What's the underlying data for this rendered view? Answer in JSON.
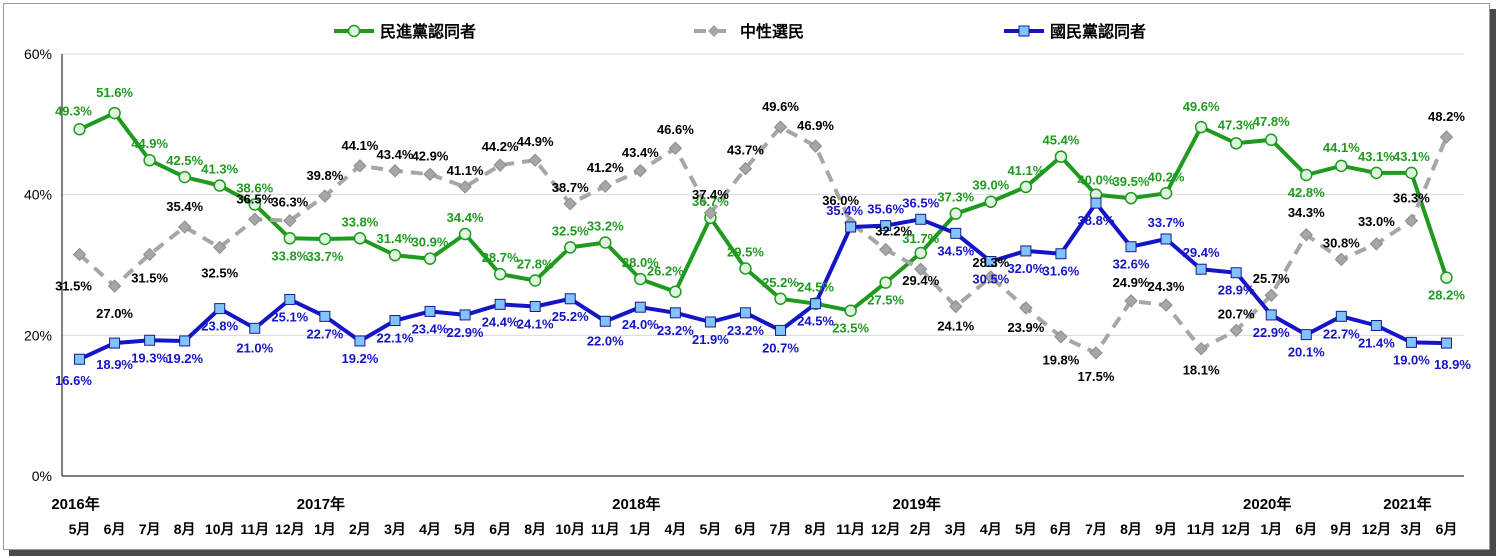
{
  "chart_data": {
    "type": "line",
    "ylim": [
      0,
      60
    ],
    "yticks": [
      "0%",
      "20%",
      "40%",
      "60%"
    ],
    "years": [
      {
        "label": "2016年",
        "index": 0
      },
      {
        "label": "2017年",
        "index": 7
      },
      {
        "label": "2018年",
        "index": 16
      },
      {
        "label": "2019年",
        "index": 24
      },
      {
        "label": "2020年",
        "index": 34
      },
      {
        "label": "2021年",
        "index": 38
      }
    ],
    "categories": [
      "5月",
      "6月",
      "7月",
      "8月",
      "10月",
      "11月",
      "12月",
      "1月",
      "2月",
      "3月",
      "4月",
      "5月",
      "6月",
      "8月",
      "10月",
      "11月",
      "1月",
      "4月",
      "5月",
      "6月",
      "7月",
      "8月",
      "11月",
      "12月",
      "2月",
      "3月",
      "4月",
      "5月",
      "6月",
      "7月",
      "8月",
      "9月",
      "11月",
      "12月",
      "1月",
      "6月",
      "9月",
      "12月",
      "3月",
      "6月"
    ],
    "series": [
      {
        "name": "民進黨認同者",
        "color": "#1f9a1f",
        "marker": "circle",
        "values": [
          49.3,
          51.6,
          44.9,
          42.5,
          41.3,
          38.6,
          33.8,
          33.7,
          33.8,
          31.4,
          30.9,
          34.4,
          28.7,
          27.8,
          32.5,
          33.2,
          28.0,
          26.2,
          36.7,
          29.5,
          25.2,
          24.5,
          23.5,
          27.5,
          31.7,
          37.3,
          39.0,
          41.1,
          45.4,
          40.0,
          39.5,
          40.2,
          49.6,
          47.3,
          47.8,
          42.8,
          44.1,
          43.1,
          43.1,
          28.2
        ],
        "labels": [
          "49.3%",
          "51.6%",
          "44.9%",
          "42.5%",
          "41.3%",
          "38.6%",
          "33.8%",
          "33.7%",
          "33.8%",
          "31.4%",
          "30.9%",
          "34.4%",
          "28.7%",
          "27.8%",
          "32.5%",
          "33.2%",
          "28.0%",
          "26.2%",
          "36.7%",
          "29.5%",
          "25.2%",
          "24.5%",
          "23.5%",
          "27.5%",
          "31.7%",
          "37.3%",
          "39.0%",
          "41.1%",
          "45.4%",
          "40.0%",
          "39.5%",
          "40.2%",
          "49.6%",
          "47.3%",
          "47.8%",
          "42.8%",
          "44.1%",
          "43.1%",
          "43.1%",
          "28.2%"
        ]
      },
      {
        "name": "中性選民",
        "color": "#a6a6a6",
        "marker": "diamond",
        "values": [
          31.5,
          27.0,
          31.5,
          35.4,
          32.5,
          36.5,
          36.3,
          39.8,
          44.1,
          43.4,
          42.9,
          41.1,
          44.2,
          44.9,
          38.7,
          41.2,
          43.4,
          46.6,
          37.4,
          43.7,
          49.6,
          46.9,
          36.0,
          32.2,
          29.4,
          24.1,
          28.3,
          23.9,
          19.8,
          17.5,
          24.9,
          24.3,
          18.1,
          20.7,
          25.7,
          34.3,
          30.8,
          33.0,
          36.3,
          48.2
        ],
        "labels": [
          "31.5%",
          "27.0%",
          "31.5%",
          "35.4%",
          "32.5%",
          "36.5%",
          "36.3%",
          "39.8%",
          "44.1%",
          "43.4%",
          "42.9%",
          "41.1%",
          "44.2%",
          "44.9%",
          "38.7%",
          "41.2%",
          "43.4%",
          "46.6%",
          "37.4%",
          "43.7%",
          "49.6%",
          "46.9%",
          "36.0%",
          "32.2%",
          "29.4%",
          "24.1%",
          "28.3%",
          "23.9%",
          "19.8%",
          "17.5%",
          "24.9%",
          "24.3%",
          "18.1%",
          "20.7%",
          "25.7%",
          "34.3%",
          "30.8%",
          "33.0%",
          "36.3%",
          "48.2%"
        ]
      },
      {
        "name": "國民黨認同者",
        "color": "#1414c8",
        "marker": "square",
        "values": [
          16.6,
          18.9,
          19.3,
          19.2,
          23.8,
          21.0,
          25.1,
          22.7,
          19.2,
          22.1,
          23.4,
          22.9,
          24.4,
          24.1,
          25.2,
          22.0,
          24.0,
          23.2,
          21.9,
          23.2,
          20.7,
          24.5,
          35.4,
          35.6,
          36.5,
          34.5,
          30.5,
          32.0,
          31.6,
          38.8,
          32.6,
          33.7,
          29.4,
          28.9,
          22.9,
          20.1,
          22.7,
          21.4,
          19.0,
          18.9
        ],
        "labels": [
          "16.6%",
          "18.9%",
          "19.3%",
          "19.2%",
          "23.8%",
          "21.0%",
          "25.1%",
          "22.7%",
          "19.2%",
          "22.1%",
          "23.4%",
          "22.9%",
          "24.4%",
          "24.1%",
          "25.2%",
          "22.0%",
          "24.0%",
          "23.2%",
          "21.9%",
          "23.2%",
          "20.7%",
          "24.5%",
          "35.4%",
          "35.6%",
          "36.5%",
          "34.5%",
          "30.5%",
          "32.0%",
          "31.6%",
          "38.8%",
          "32.6%",
          "33.7%",
          "29.4%",
          "28.9%",
          "22.9%",
          "20.1%",
          "22.7%",
          "21.4%",
          "19.0%",
          "18.9%"
        ]
      }
    ]
  }
}
